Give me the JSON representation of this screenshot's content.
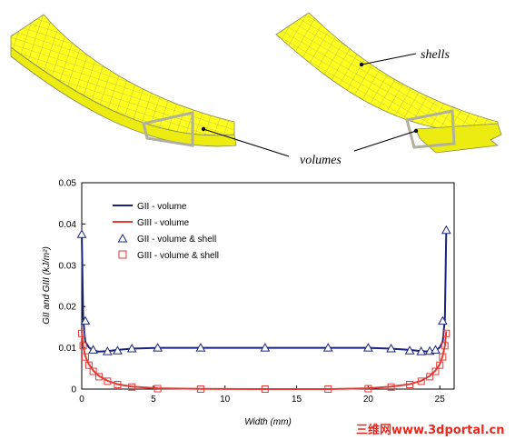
{
  "figure": {
    "labels": {
      "shells": "shells",
      "volumes": "volumes"
    },
    "watermark": "三维网www.3dportal.cn"
  },
  "chart_data": {
    "type": "line",
    "xlabel": "Width (mm)",
    "ylabel": "GII and GIII (kJ/m²)",
    "xlim": [
      0,
      26
    ],
    "ylim": [
      0,
      0.05
    ],
    "xticks": [
      "0",
      "5",
      "10",
      "15",
      "20",
      "25"
    ],
    "yticks": [
      "0",
      "0.01",
      "0.02",
      "0.03",
      "0.04",
      "0.05"
    ],
    "legend_position": "top-left",
    "grid": false,
    "series": [
      {
        "name": "GII - volume",
        "kind": "line",
        "color": "#1a237e",
        "x": [
          0,
          0.1,
          0.25,
          0.5,
          0.8,
          1.2,
          1.8,
          2.5,
          3.5,
          5.3,
          8.3,
          12.8,
          17.2,
          20.0,
          21.6,
          22.9,
          23.7,
          24.3,
          24.7,
          25.0,
          25.2,
          25.35,
          25.45
        ],
        "y": [
          0.038,
          0.017,
          0.0115,
          0.0101,
          0.0093,
          0.0091,
          0.0092,
          0.0095,
          0.0098,
          0.01,
          0.01,
          0.01,
          0.01,
          0.01,
          0.0098,
          0.0095,
          0.0092,
          0.0091,
          0.0093,
          0.0101,
          0.0115,
          0.017,
          0.038
        ]
      },
      {
        "name": "GIII - volume",
        "kind": "line",
        "color": "#e53935",
        "x": [
          0,
          0.1,
          0.25,
          0.5,
          0.8,
          1.2,
          1.8,
          2.5,
          3.5,
          5.3,
          8.3,
          12.8,
          17.2,
          20.0,
          21.6,
          22.9,
          23.7,
          24.3,
          24.7,
          25.0,
          25.2,
          25.35,
          25.45
        ],
        "y": [
          0.014,
          0.0105,
          0.008,
          0.006,
          0.0045,
          0.0032,
          0.002,
          0.0012,
          0.0006,
          0.0002,
          5e-05,
          0,
          0,
          0.0002,
          0.0006,
          0.0012,
          0.002,
          0.0032,
          0.0045,
          0.006,
          0.008,
          0.0105,
          0.014
        ]
      },
      {
        "name": "GII - volume & shell",
        "kind": "triangle",
        "color": "#1a237e",
        "x": [
          0,
          0.25,
          0.8,
          1.8,
          2.5,
          3.5,
          5.3,
          8.3,
          12.8,
          17.2,
          20.0,
          21.6,
          22.9,
          23.7,
          24.3,
          24.7,
          25.2,
          25.45
        ],
        "y": [
          0.0375,
          0.0165,
          0.0095,
          0.0091,
          0.0093,
          0.0098,
          0.01,
          0.01,
          0.01,
          0.01,
          0.01,
          0.0098,
          0.0093,
          0.0091,
          0.0092,
          0.0095,
          0.0165,
          0.0385
        ]
      },
      {
        "name": "GIII - volume & shell",
        "kind": "square",
        "color": "#e53935",
        "x": [
          0,
          0.1,
          0.25,
          0.5,
          0.8,
          1.2,
          1.8,
          2.5,
          3.5,
          5.3,
          8.3,
          12.8,
          17.2,
          20.0,
          21.6,
          22.9,
          23.7,
          24.3,
          24.7,
          25.0,
          25.2,
          25.35,
          25.45
        ],
        "y": [
          0.0135,
          0.0105,
          0.0078,
          0.0058,
          0.0043,
          0.003,
          0.0019,
          0.0011,
          0.0005,
          0.0001,
          0,
          0,
          0,
          0.0001,
          0.0005,
          0.0011,
          0.0019,
          0.003,
          0.0043,
          0.0058,
          0.0078,
          0.0105,
          0.0135
        ]
      }
    ]
  }
}
